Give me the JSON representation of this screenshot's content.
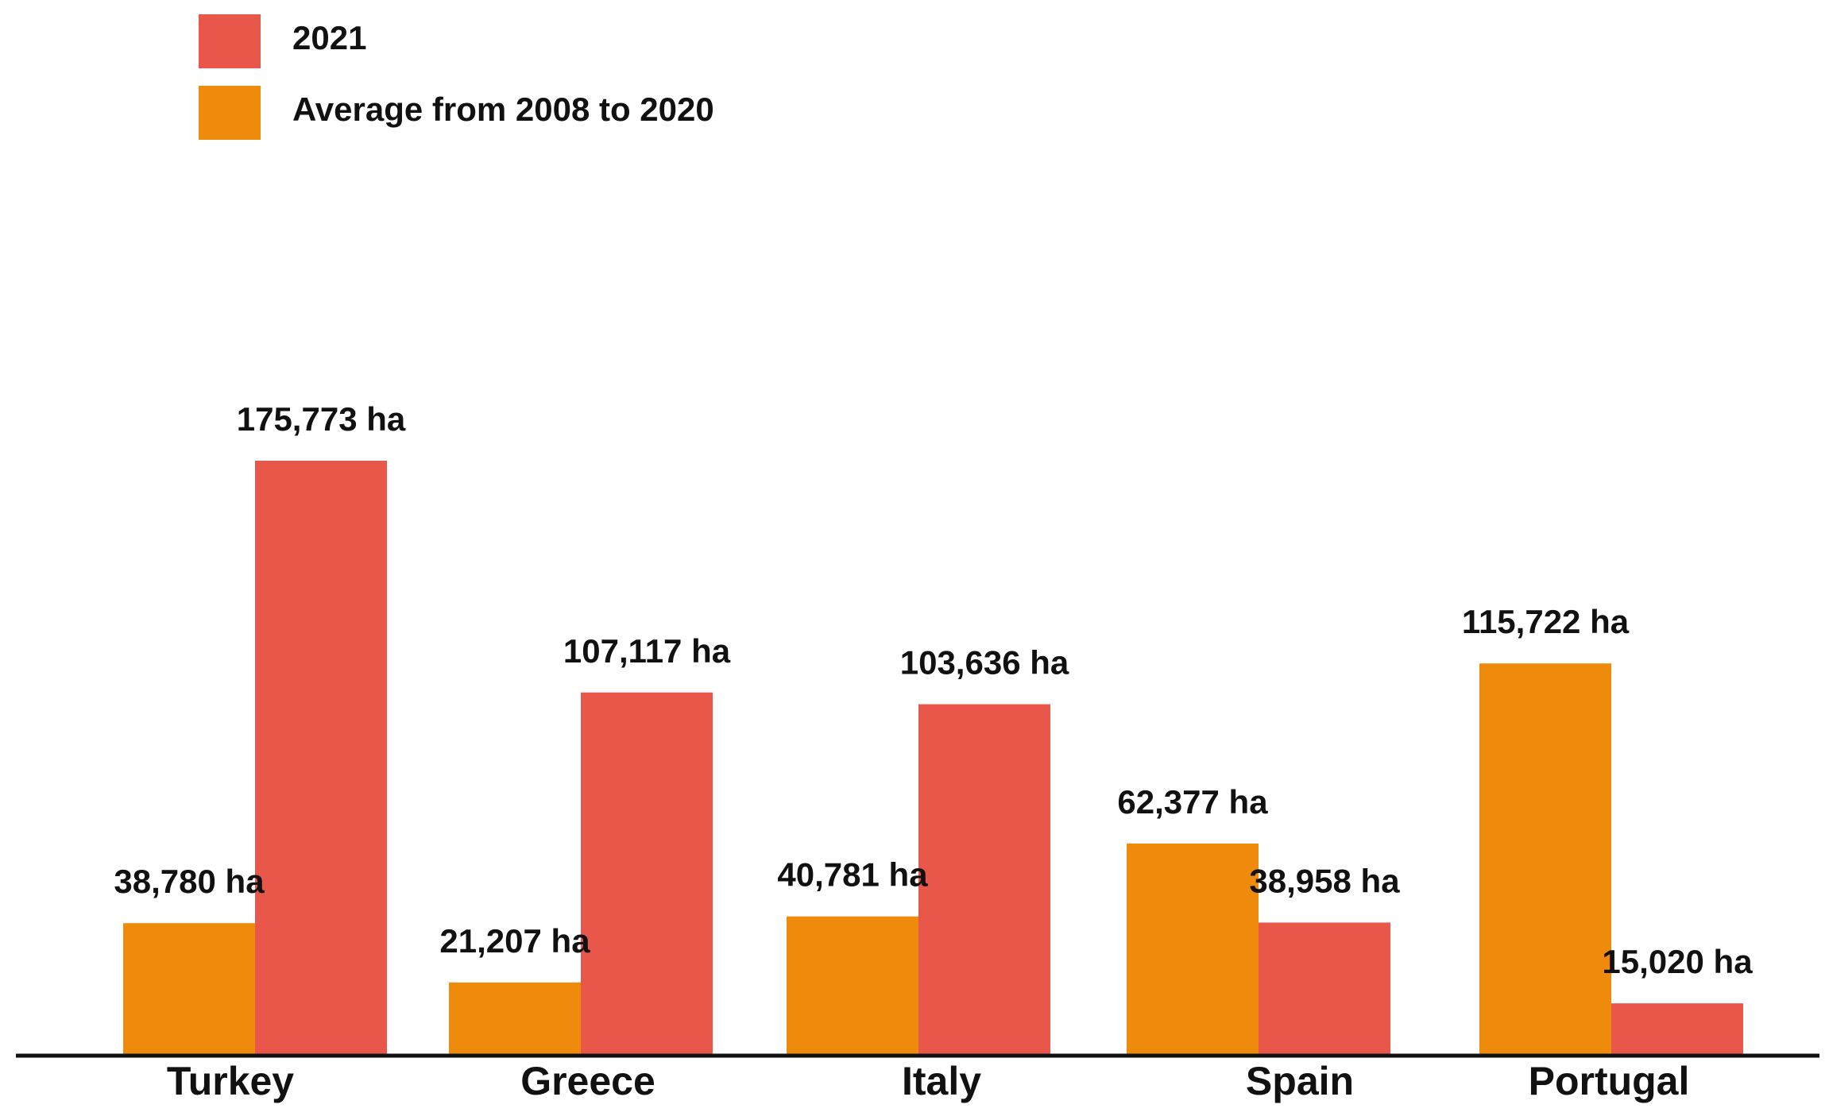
{
  "colors": {
    "year2021": "#E8574A",
    "average": "#EE8A0C",
    "axis": "#111111"
  },
  "chart_data": {
    "type": "bar",
    "title": "",
    "xlabel": "",
    "ylabel": "",
    "ylim": [
      0,
      200000
    ],
    "grid": false,
    "legend_position": "top-left",
    "categories": [
      "Turkey",
      "Greece",
      "Italy",
      "Spain",
      "Portugal"
    ],
    "series": [
      {
        "name": "Average from 2008 to 2020",
        "color_key": "average",
        "values": [
          38780,
          21207,
          40781,
          62377,
          115722
        ],
        "labels": [
          "38,780 ha",
          "21,207 ha",
          "40,781 ha",
          "62,377 ha",
          "115,722 ha"
        ]
      },
      {
        "name": "2021",
        "color_key": "year2021",
        "values": [
          175773,
          107117,
          103636,
          38958,
          15020
        ],
        "labels": [
          "175,773 ha",
          "107,117 ha",
          "103,636 ha",
          "38,958 ha",
          "15,020 ha"
        ]
      }
    ],
    "legend": [
      {
        "label": "2021",
        "color_key": "year2021"
      },
      {
        "label": "Average from 2008 to 2020",
        "color_key": "average"
      }
    ]
  }
}
